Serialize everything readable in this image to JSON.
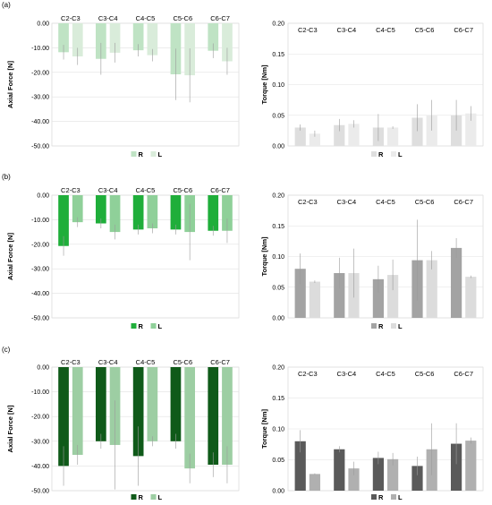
{
  "panel_labels": [
    "(a)",
    "(b)",
    "(c)"
  ],
  "legend_labels": [
    "R",
    "L"
  ],
  "chart_data": [
    {
      "type": "bar",
      "panel": "(a)",
      "ylabel": "Axial Force [N]",
      "categories": [
        "C2-C3",
        "C3-C4",
        "C4-C5",
        "C5-C6",
        "C6-C7"
      ],
      "ylim": [
        -50,
        0
      ],
      "yticks": [
        0,
        -10,
        -20,
        -30,
        -40,
        -50
      ],
      "tick_labels": [
        "0.00",
        "-10.00",
        "-20.00",
        "-30.00",
        "-40.00",
        "-50.00"
      ],
      "grid": true,
      "legend": "bottom-center",
      "colors": [
        "#bfe3c4",
        "#d9ecda"
      ],
      "series": [
        {
          "name": "R",
          "values": [
            -11.8,
            -14.5,
            -11.0,
            -20.8,
            -11.2
          ],
          "errors": [
            3.0,
            6.5,
            2.5,
            10.5,
            3.0
          ]
        },
        {
          "name": "L",
          "values": [
            -13.5,
            -12.0,
            -13.0,
            -21.2,
            -15.5
          ],
          "errors": [
            3.5,
            4.0,
            2.5,
            11.0,
            5.5
          ]
        }
      ]
    },
    {
      "type": "bar",
      "panel": "(a)",
      "ylabel": "Torque [Nm]",
      "categories": [
        "C2-C3",
        "C3-C4",
        "C4-C5",
        "C5-C6",
        "C6-C7"
      ],
      "ylim": [
        0,
        0.2
      ],
      "yticks": [
        0,
        0.05,
        0.1,
        0.15,
        0.2
      ],
      "tick_labels": [
        "0.00",
        "0.05",
        "0.10",
        "0.15",
        "0.20"
      ],
      "grid": true,
      "legend": "bottom-center",
      "colors": [
        "#dedede",
        "#ebebeb"
      ],
      "series": [
        {
          "name": "R",
          "values": [
            0.03,
            0.034,
            0.03,
            0.046,
            0.05
          ],
          "errors": [
            0.005,
            0.01,
            0.022,
            0.022,
            0.025
          ]
        },
        {
          "name": "L",
          "values": [
            0.02,
            0.036,
            0.03,
            0.05,
            0.053
          ],
          "errors": [
            0.005,
            0.006,
            0.002,
            0.025,
            0.012
          ]
        }
      ]
    },
    {
      "type": "bar",
      "panel": "(b)",
      "ylabel": "Axial Force [N]",
      "categories": [
        "C2-C3",
        "C3-C4",
        "C4-C5",
        "C5-C6",
        "C6-C7"
      ],
      "ylim": [
        -50,
        0
      ],
      "yticks": [
        0,
        -10,
        -20,
        -30,
        -40,
        -50
      ],
      "tick_labels": [
        "0.00",
        "-10.00",
        "-20.00",
        "-30.00",
        "-40.00",
        "-50.00"
      ],
      "grid": true,
      "legend": "bottom-center",
      "colors": [
        "#1fae3a",
        "#8fd099"
      ],
      "series": [
        {
          "name": "R",
          "values": [
            -20.7,
            -11.5,
            -14.0,
            -14.0,
            -14.5
          ],
          "errors": [
            4.0,
            2.0,
            2.0,
            2.0,
            2.0
          ]
        },
        {
          "name": "L",
          "values": [
            -11.0,
            -15.0,
            -13.5,
            -15.0,
            -14.5
          ],
          "errors": [
            2.0,
            3.0,
            2.0,
            11.5,
            5.0
          ]
        }
      ]
    },
    {
      "type": "bar",
      "panel": "(b)",
      "ylabel": "Torque [Nm]",
      "categories": [
        "C2-C3",
        "C3-C4",
        "C4-C5",
        "C5-C6",
        "C6-C7"
      ],
      "ylim": [
        0,
        0.2
      ],
      "yticks": [
        0,
        0.05,
        0.1,
        0.15,
        0.2
      ],
      "tick_labels": [
        "0.00",
        "0.05",
        "0.10",
        "0.15",
        "0.20"
      ],
      "grid": true,
      "legend": "bottom-center",
      "colors": [
        "#a3a3a3",
        "#dcdcdc"
      ],
      "series": [
        {
          "name": "R",
          "values": [
            0.08,
            0.073,
            0.063,
            0.094,
            0.114
          ],
          "errors": [
            0.025,
            0.025,
            0.022,
            0.066,
            0.016
          ]
        },
        {
          "name": "L",
          "values": [
            0.059,
            0.073,
            0.07,
            0.094,
            0.067
          ],
          "errors": [
            0.002,
            0.04,
            0.025,
            0.015,
            0.002
          ]
        }
      ]
    },
    {
      "type": "bar",
      "panel": "(c)",
      "ylabel": "Axial Force [N]",
      "categories": [
        "C2-C3",
        "C3-C4",
        "C4-C5",
        "C5-C6",
        "C6-C7"
      ],
      "ylim": [
        -50,
        0
      ],
      "yticks": [
        0,
        -10,
        -20,
        -30,
        -40,
        -50
      ],
      "tick_labels": [
        "0.00",
        "-10.00",
        "-20.00",
        "-30.00",
        "-40.00",
        "-50.00"
      ],
      "grid": true,
      "legend": "bottom-center",
      "colors": [
        "#0f5a19",
        "#9dcea3"
      ],
      "series": [
        {
          "name": "R",
          "values": [
            -40.0,
            -30.0,
            -36.0,
            -30.0,
            -39.5
          ],
          "errors": [
            8.0,
            3.0,
            12.0,
            3.0,
            5.0
          ]
        },
        {
          "name": "L",
          "values": [
            -35.5,
            -31.5,
            -30.0,
            -41.0,
            -39.5
          ],
          "errors": [
            4.0,
            18.0,
            2.0,
            6.0,
            7.5
          ]
        }
      ]
    },
    {
      "type": "bar",
      "panel": "(c)",
      "ylabel": "Torque [Nm]",
      "categories": [
        "C2-C3",
        "C3-C4",
        "C4-C5",
        "C5-C6",
        "C6-C7"
      ],
      "ylim": [
        0,
        0.2
      ],
      "yticks": [
        0,
        0.05,
        0.1,
        0.15,
        0.2
      ],
      "tick_labels": [
        "0.00",
        "0.05",
        "0.10",
        "0.15",
        "0.20"
      ],
      "grid": true,
      "legend": "bottom-center",
      "colors": [
        "#5a5a5a",
        "#b0b0b0"
      ],
      "series": [
        {
          "name": "R",
          "values": [
            0.08,
            0.067,
            0.053,
            0.04,
            0.076
          ],
          "errors": [
            0.018,
            0.005,
            0.01,
            0.015,
            0.033
          ]
        },
        {
          "name": "L",
          "values": [
            0.027,
            0.036,
            0.051,
            0.067,
            0.081
          ],
          "errors": [
            0.001,
            0.011,
            0.01,
            0.042,
            0.005
          ]
        }
      ]
    }
  ]
}
